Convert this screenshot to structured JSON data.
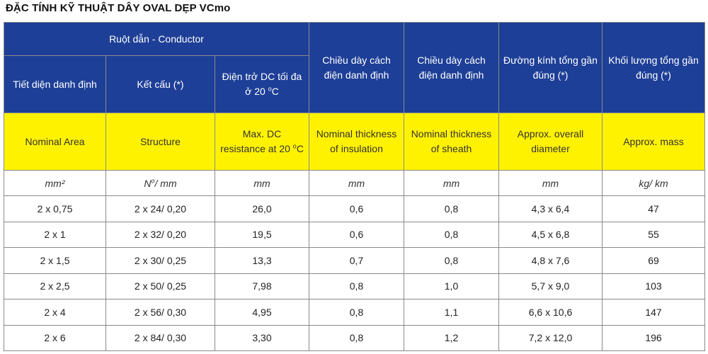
{
  "title": "ĐẶC TÍNH KỸ THUẬT DÂY OVAL DẸP VCmo",
  "header": {
    "group_label": "Ruột dẫn - Conductor",
    "nominal_area_vi": "Tiết diện danh định",
    "structure_vi": "Kết cấu (*)",
    "resistance_vi": "Điện trở DC tối đa ở 20",
    "insulation_vi": "Chiều dày cách điện danh định",
    "sheath_vi": "Chiều dày cách điện danh định",
    "diameter_vi": "Đường kính tổng gần đúng (*)",
    "mass_vi": "Khối lượng tổng gần đúng (*)",
    "degree_mark": "o",
    "celsius_unit": "C"
  },
  "header_en": {
    "nominal_area": "Nominal Area",
    "structure": "Structure",
    "resistance": "Max. DC resistance at 20",
    "insulation": "Nominal thickness of insulation",
    "sheath": "Nominal thickness of sheath",
    "diameter": "Approx. overall diameter",
    "mass": "Approx. mass"
  },
  "units": {
    "nominal_area": "mm²",
    "structure_n": "N",
    "structure_mm": "/ mm",
    "resistance": "mm",
    "insulation": "mm",
    "sheath": "mm",
    "diameter": "mm",
    "mass": "kg/ km"
  },
  "rows": [
    {
      "area": "2 x 0,75",
      "structure": "2 x 24/ 0,20",
      "resistance": "26,0",
      "insulation": "0,6",
      "sheath": "0,8",
      "diameter": "4,3 x 6,4",
      "mass": "47"
    },
    {
      "area": "2 x 1",
      "structure": "2 x 32/ 0,20",
      "resistance": "19,5",
      "insulation": "0,6",
      "sheath": "0,8",
      "diameter": "4,5 x 6,8",
      "mass": "55"
    },
    {
      "area": "2 x 1,5",
      "structure": "2 x 30/ 0,25",
      "resistance": "13,3",
      "insulation": "0,7",
      "sheath": "0,8",
      "diameter": "4,8 x 7,6",
      "mass": "69"
    },
    {
      "area": "2 x 2,5",
      "structure": "2 x 50/ 0,25",
      "resistance": "7,98",
      "insulation": "0,8",
      "sheath": "1,0",
      "diameter": "5,7 x 9,0",
      "mass": "103"
    },
    {
      "area": "2 x 4",
      "structure": "2 x 56/ 0,30",
      "resistance": "4,95",
      "insulation": "0,8",
      "sheath": "1,1",
      "diameter": "6,6 x 10,6",
      "mass": "147"
    },
    {
      "area": "2 x 6",
      "structure": "2 x 84/ 0,30",
      "resistance": "3,30",
      "insulation": "0,8",
      "sheath": "1,2",
      "diameter": "7,2 x 12,0",
      "mass": "196"
    }
  ]
}
